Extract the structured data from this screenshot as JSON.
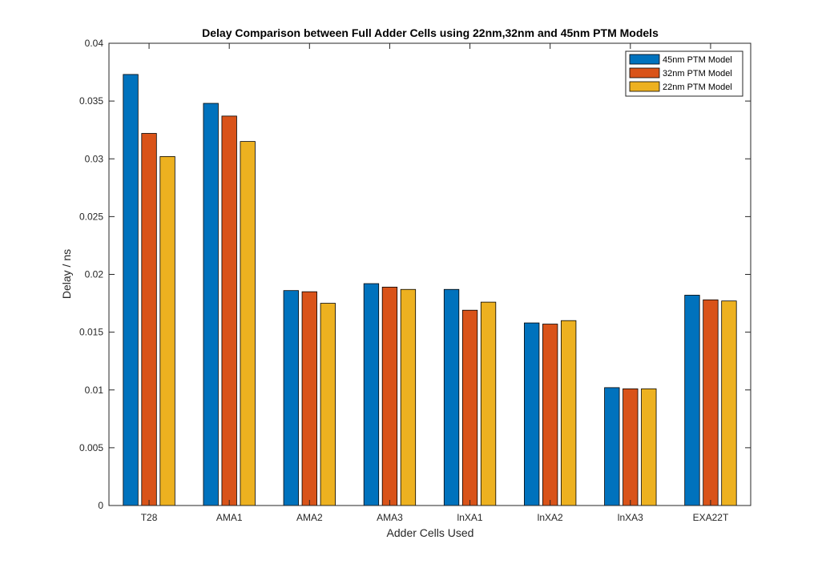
{
  "chart_data": {
    "type": "bar",
    "title": "Delay Comparison between Full Adder Cells using 22nm,32nm and 45nm PTM Models",
    "xlabel": "Adder Cells Used",
    "ylabel": "Delay / ns",
    "ylim": [
      0,
      0.04
    ],
    "yticks": [
      "0",
      "0.005",
      "0.01",
      "0.015",
      "0.02",
      "0.025",
      "0.03",
      "0.035",
      "0.04"
    ],
    "categories": [
      "T28",
      "AMA1",
      "AMA2",
      "AMA3",
      "lnXA1",
      "lnXA2",
      "lnXA3",
      "EXA22T"
    ],
    "series": [
      {
        "name": "45nm PTM Model",
        "color": "#0072bd",
        "values": [
          0.0373,
          0.0348,
          0.0186,
          0.0192,
          0.0187,
          0.0158,
          0.0102,
          0.0182
        ]
      },
      {
        "name": "32nm PTM Model",
        "color": "#d95319",
        "values": [
          0.0322,
          0.0337,
          0.0185,
          0.0189,
          0.0169,
          0.0157,
          0.0101,
          0.0178
        ]
      },
      {
        "name": "22nm PTM Model",
        "color": "#edb120",
        "values": [
          0.0302,
          0.0315,
          0.0175,
          0.0187,
          0.0176,
          0.016,
          0.0101,
          0.0177
        ]
      }
    ],
    "grid": false,
    "legend_position": "top-right"
  }
}
